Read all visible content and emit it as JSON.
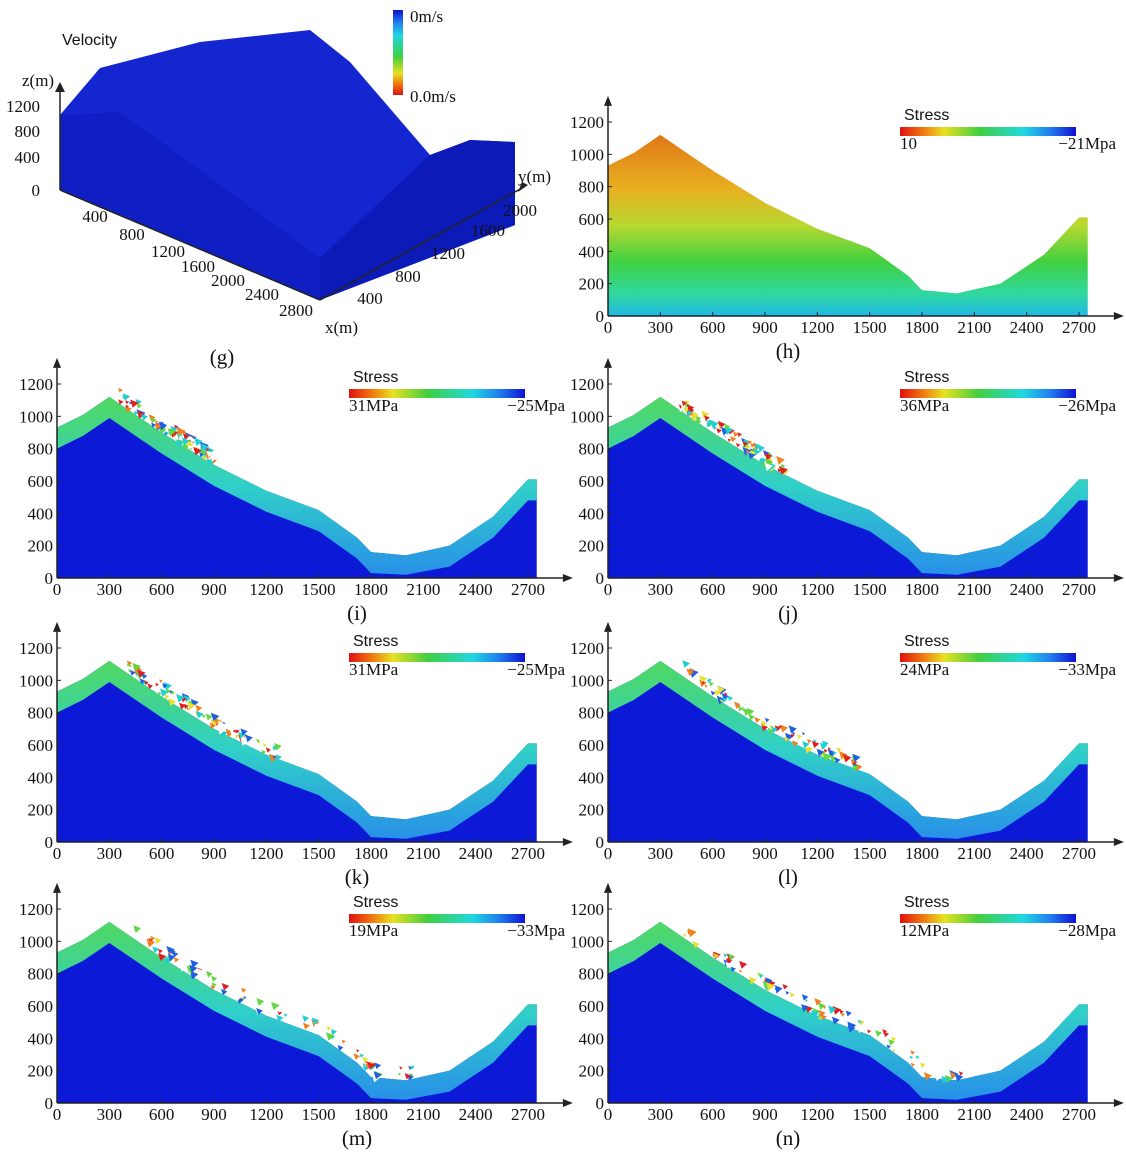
{
  "panel_g": {
    "caption": "(g)",
    "title": "Velocity",
    "legend_top": "0m/s",
    "legend_bottom": "0.0m/s",
    "z_label": "z(m)",
    "x_label": "x(m)",
    "y_label": "y(m)",
    "zticks": [
      1200,
      800,
      400,
      0
    ],
    "xticks": [
      400,
      800,
      1200,
      1600,
      2000,
      2400,
      2800
    ],
    "yticks": [
      400,
      800,
      1200,
      1600,
      2000
    ]
  },
  "panels": [
    {
      "caption": "(h)",
      "legend_title": "Stress",
      "legend_min": "10",
      "legend_max": "−21Mpa",
      "xlim": [
        0,
        2900
      ],
      "ylim": [
        0,
        1300
      ],
      "xticks": [
        0,
        300,
        600,
        900,
        1200,
        1500,
        1800,
        2100,
        2400,
        2700
      ],
      "yticks": [
        0,
        200,
        400,
        600,
        800,
        1000,
        1200
      ]
    },
    {
      "caption": "(i)",
      "legend_title": "Stress",
      "legend_min": "31MPa",
      "legend_max": "−25Mpa",
      "xlim": [
        0,
        2900
      ],
      "ylim": [
        0,
        1300
      ],
      "xticks": [
        0,
        300,
        600,
        900,
        1200,
        1500,
        1800,
        2100,
        2400,
        2700
      ],
      "yticks": [
        0,
        200,
        400,
        600,
        800,
        1000,
        1200
      ]
    },
    {
      "caption": "(j)",
      "legend_title": "Stress",
      "legend_min": "36MPa",
      "legend_max": "−26Mpa",
      "xlim": [
        0,
        2900
      ],
      "ylim": [
        0,
        1300
      ],
      "xticks": [
        0,
        300,
        600,
        900,
        1200,
        1500,
        1800,
        2100,
        2400,
        2700
      ],
      "yticks": [
        0,
        200,
        400,
        600,
        800,
        1000,
        1200
      ]
    },
    {
      "caption": "(k)",
      "legend_title": "Stress",
      "legend_min": "31MPa",
      "legend_max": "−25Mpa",
      "xlim": [
        0,
        2900
      ],
      "ylim": [
        0,
        1300
      ],
      "xticks": [
        0,
        300,
        600,
        900,
        1200,
        1500,
        1800,
        2100,
        2400,
        2700
      ],
      "yticks": [
        0,
        200,
        400,
        600,
        800,
        1000,
        1200
      ]
    },
    {
      "caption": "(l)",
      "legend_title": "Stress",
      "legend_min": "24MPa",
      "legend_max": "−33Mpa",
      "xlim": [
        0,
        2900
      ],
      "ylim": [
        0,
        1300
      ],
      "xticks": [
        0,
        300,
        600,
        900,
        1200,
        1500,
        1800,
        2100,
        2400,
        2700
      ],
      "yticks": [
        0,
        200,
        400,
        600,
        800,
        1000,
        1200
      ]
    },
    {
      "caption": "(m)",
      "legend_title": "Stress",
      "legend_min": "19MPa",
      "legend_max": "−33Mpa",
      "xlim": [
        0,
        2900
      ],
      "ylim": [
        0,
        1300
      ],
      "xticks": [
        0,
        300,
        600,
        900,
        1200,
        1500,
        1800,
        2100,
        2400,
        2700
      ],
      "yticks": [
        0,
        200,
        400,
        600,
        800,
        1000,
        1200
      ]
    },
    {
      "caption": "(n)",
      "legend_title": "Stress",
      "legend_min": "12MPa",
      "legend_max": "−28Mpa",
      "xlim": [
        0,
        2900
      ],
      "ylim": [
        0,
        1300
      ],
      "xticks": [
        0,
        300,
        600,
        900,
        1200,
        1500,
        1800,
        2100,
        2400,
        2700
      ],
      "yticks": [
        0,
        200,
        400,
        600,
        800,
        1000,
        1200
      ]
    }
  ]
}
